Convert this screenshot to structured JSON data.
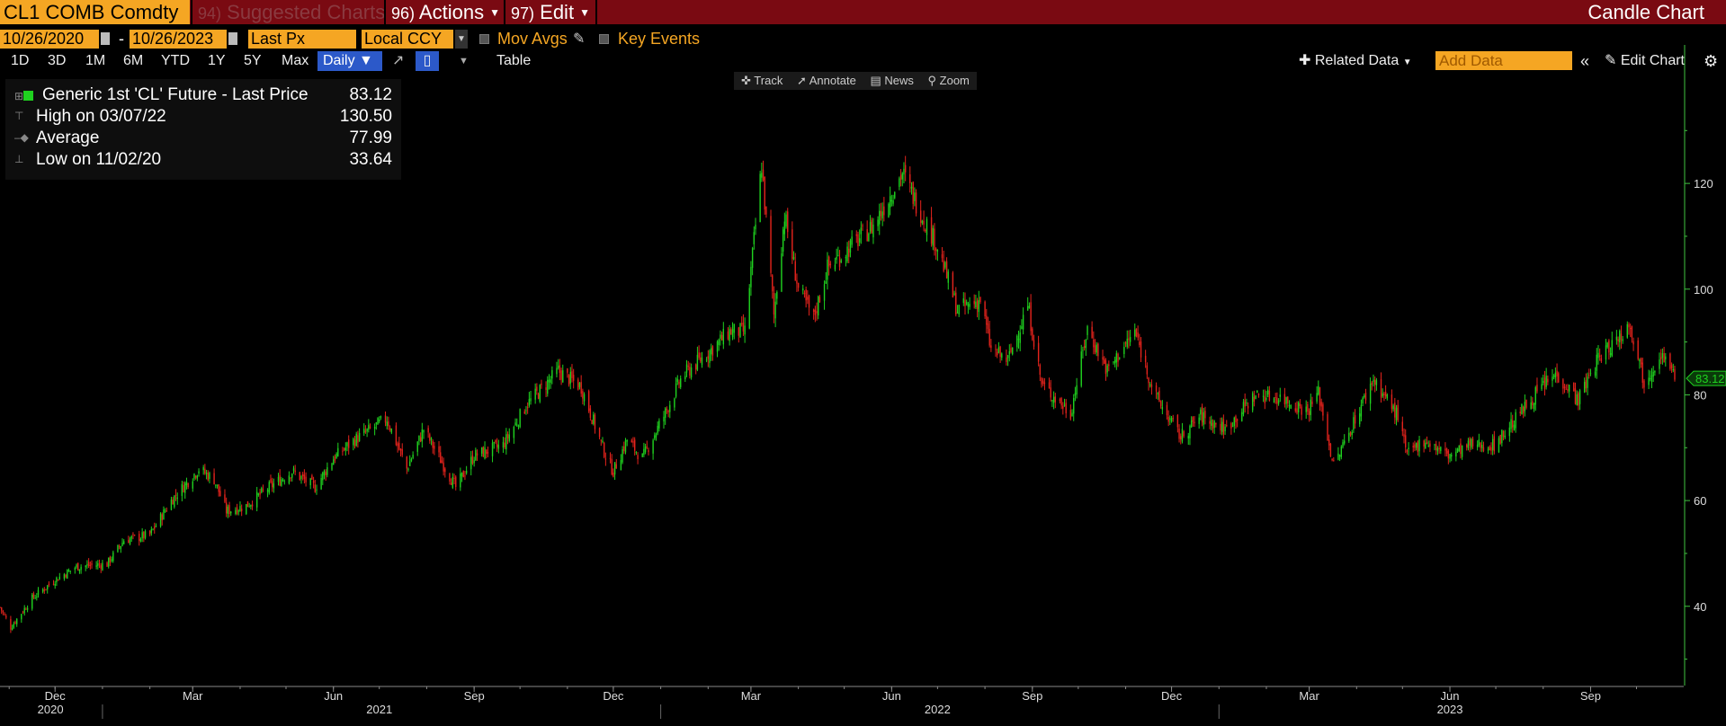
{
  "header": {
    "ticker": "CL1 COMB Comdty",
    "menu_suggested_num": "94)",
    "menu_suggested": "Suggested Charts",
    "menu_actions_num": "96)",
    "menu_actions": "Actions",
    "menu_edit_num": "97)",
    "menu_edit": "Edit",
    "chart_title": "Candle Chart"
  },
  "controls": {
    "start_date": "10/26/2020",
    "date_dash": "-",
    "end_date": "10/26/2023",
    "field": "Last Px",
    "currency": "Local CCY",
    "mov_avgs": "Mov Avgs",
    "key_events": "Key Events"
  },
  "toolbar": {
    "periods": [
      "1D",
      "3D",
      "1M",
      "6M",
      "YTD",
      "1Y",
      "5Y",
      "Max"
    ],
    "frequency": "Daily",
    "table": "Table",
    "related_data": "Related Data",
    "add_data_placeholder": "Add Data",
    "edit_chart": "Edit Chart"
  },
  "chart_tools": {
    "track": "Track",
    "annotate": "Annotate",
    "news": "News",
    "zoom": "Zoom"
  },
  "legend": {
    "series_label": "Generic 1st 'CL' Future - Last Price",
    "series_value": "83.12",
    "high_label": "High on 03/07/22",
    "high_value": "130.50",
    "avg_label": "Average",
    "avg_value": "77.99",
    "low_label": "Low on 11/02/20",
    "low_value": "33.64"
  },
  "colors": {
    "up": "#1fd11f",
    "down": "#e3231c",
    "accent": "#f5a623",
    "header_bg": "#7a0a12",
    "axis": "#3fc43f"
  },
  "chart_data": {
    "type": "candlestick",
    "title": "Generic 1st 'CL' Future - Last Price",
    "ylim": [
      25,
      136
    ],
    "y_ticks": [
      40,
      60,
      80,
      100,
      120
    ],
    "last_price": 83.12,
    "month_ticks": [
      "Dec",
      "Mar",
      "Jun",
      "Sep",
      "Dec",
      "Mar",
      "Jun",
      "Sep",
      "Dec",
      "Mar",
      "Jun",
      "Sep"
    ],
    "year_labels": [
      "2020",
      "2021",
      "2022",
      "2023"
    ],
    "x_start": "2020-10-26",
    "x_end": "2023-10-26",
    "series": [
      {
        "name": "Generic 1st 'CL' Future",
        "close_path": [
          [
            "2020-10-26",
            39.8
          ],
          [
            "2020-11-02",
            36.0
          ],
          [
            "2020-11-16",
            41.5
          ],
          [
            "2020-12-01",
            45.0
          ],
          [
            "2020-12-15",
            47.5
          ],
          [
            "2021-01-04",
            48.0
          ],
          [
            "2021-01-15",
            52.5
          ],
          [
            "2021-02-01",
            53.5
          ],
          [
            "2021-02-15",
            60.0
          ],
          [
            "2021-03-05",
            66.0
          ],
          [
            "2021-03-15",
            64.0
          ],
          [
            "2021-03-23",
            58.0
          ],
          [
            "2021-04-05",
            59.0
          ],
          [
            "2021-04-20",
            62.5
          ],
          [
            "2021-05-05",
            65.5
          ],
          [
            "2021-05-20",
            62.5
          ],
          [
            "2021-06-01",
            68.0
          ],
          [
            "2021-06-15",
            71.5
          ],
          [
            "2021-07-06",
            75.5
          ],
          [
            "2021-07-19",
            66.0
          ],
          [
            "2021-07-30",
            73.5
          ],
          [
            "2021-08-20",
            62.5
          ],
          [
            "2021-09-01",
            68.5
          ],
          [
            "2021-09-20",
            70.5
          ],
          [
            "2021-10-05",
            78.0
          ],
          [
            "2021-10-26",
            84.5
          ],
          [
            "2021-11-10",
            81.5
          ],
          [
            "2021-11-26",
            68.5
          ],
          [
            "2021-12-01",
            65.5
          ],
          [
            "2021-12-10",
            71.5
          ],
          [
            "2021-12-20",
            68.0
          ],
          [
            "2022-01-03",
            76.0
          ],
          [
            "2022-01-15",
            83.5
          ],
          [
            "2022-02-01",
            88.0
          ],
          [
            "2022-02-15",
            92.0
          ],
          [
            "2022-02-25",
            92.0
          ],
          [
            "2022-03-08",
            123.5
          ],
          [
            "2022-03-16",
            95.0
          ],
          [
            "2022-03-23",
            114.0
          ],
          [
            "2022-04-01",
            100.0
          ],
          [
            "2022-04-11",
            94.5
          ],
          [
            "2022-04-20",
            104.0
          ],
          [
            "2022-05-05",
            108.0
          ],
          [
            "2022-05-20",
            112.0
          ],
          [
            "2022-06-08",
            122.0
          ],
          [
            "2022-06-16",
            117.0
          ],
          [
            "2022-07-01",
            108.0
          ],
          [
            "2022-07-14",
            96.0
          ],
          [
            "2022-07-29",
            98.0
          ],
          [
            "2022-08-05",
            88.5
          ],
          [
            "2022-08-16",
            86.5
          ],
          [
            "2022-08-29",
            97.0
          ],
          [
            "2022-09-07",
            82.0
          ],
          [
            "2022-09-26",
            76.5
          ],
          [
            "2022-10-07",
            92.5
          ],
          [
            "2022-10-20",
            84.5
          ],
          [
            "2022-11-07",
            92.0
          ],
          [
            "2022-11-20",
            80.0
          ],
          [
            "2022-12-07",
            72.0
          ],
          [
            "2022-12-20",
            76.0
          ],
          [
            "2023-01-05",
            73.5
          ],
          [
            "2023-01-25",
            80.0
          ],
          [
            "2023-02-10",
            79.5
          ],
          [
            "2023-02-28",
            77.0
          ],
          [
            "2023-03-07",
            80.5
          ],
          [
            "2023-03-17",
            66.5
          ],
          [
            "2023-03-31",
            75.5
          ],
          [
            "2023-04-12",
            83.0
          ],
          [
            "2023-04-28",
            76.0
          ],
          [
            "2023-05-04",
            68.5
          ],
          [
            "2023-05-15",
            71.5
          ],
          [
            "2023-05-31",
            68.5
          ],
          [
            "2023-06-15",
            70.5
          ],
          [
            "2023-06-30",
            70.5
          ],
          [
            "2023-07-14",
            75.5
          ],
          [
            "2023-07-31",
            81.5
          ],
          [
            "2023-08-10",
            84.0
          ],
          [
            "2023-08-24",
            79.0
          ],
          [
            "2023-09-05",
            86.5
          ],
          [
            "2023-09-27",
            93.5
          ],
          [
            "2023-10-06",
            82.5
          ],
          [
            "2023-10-17",
            88.0
          ],
          [
            "2023-10-26",
            83.12
          ]
        ]
      }
    ]
  }
}
